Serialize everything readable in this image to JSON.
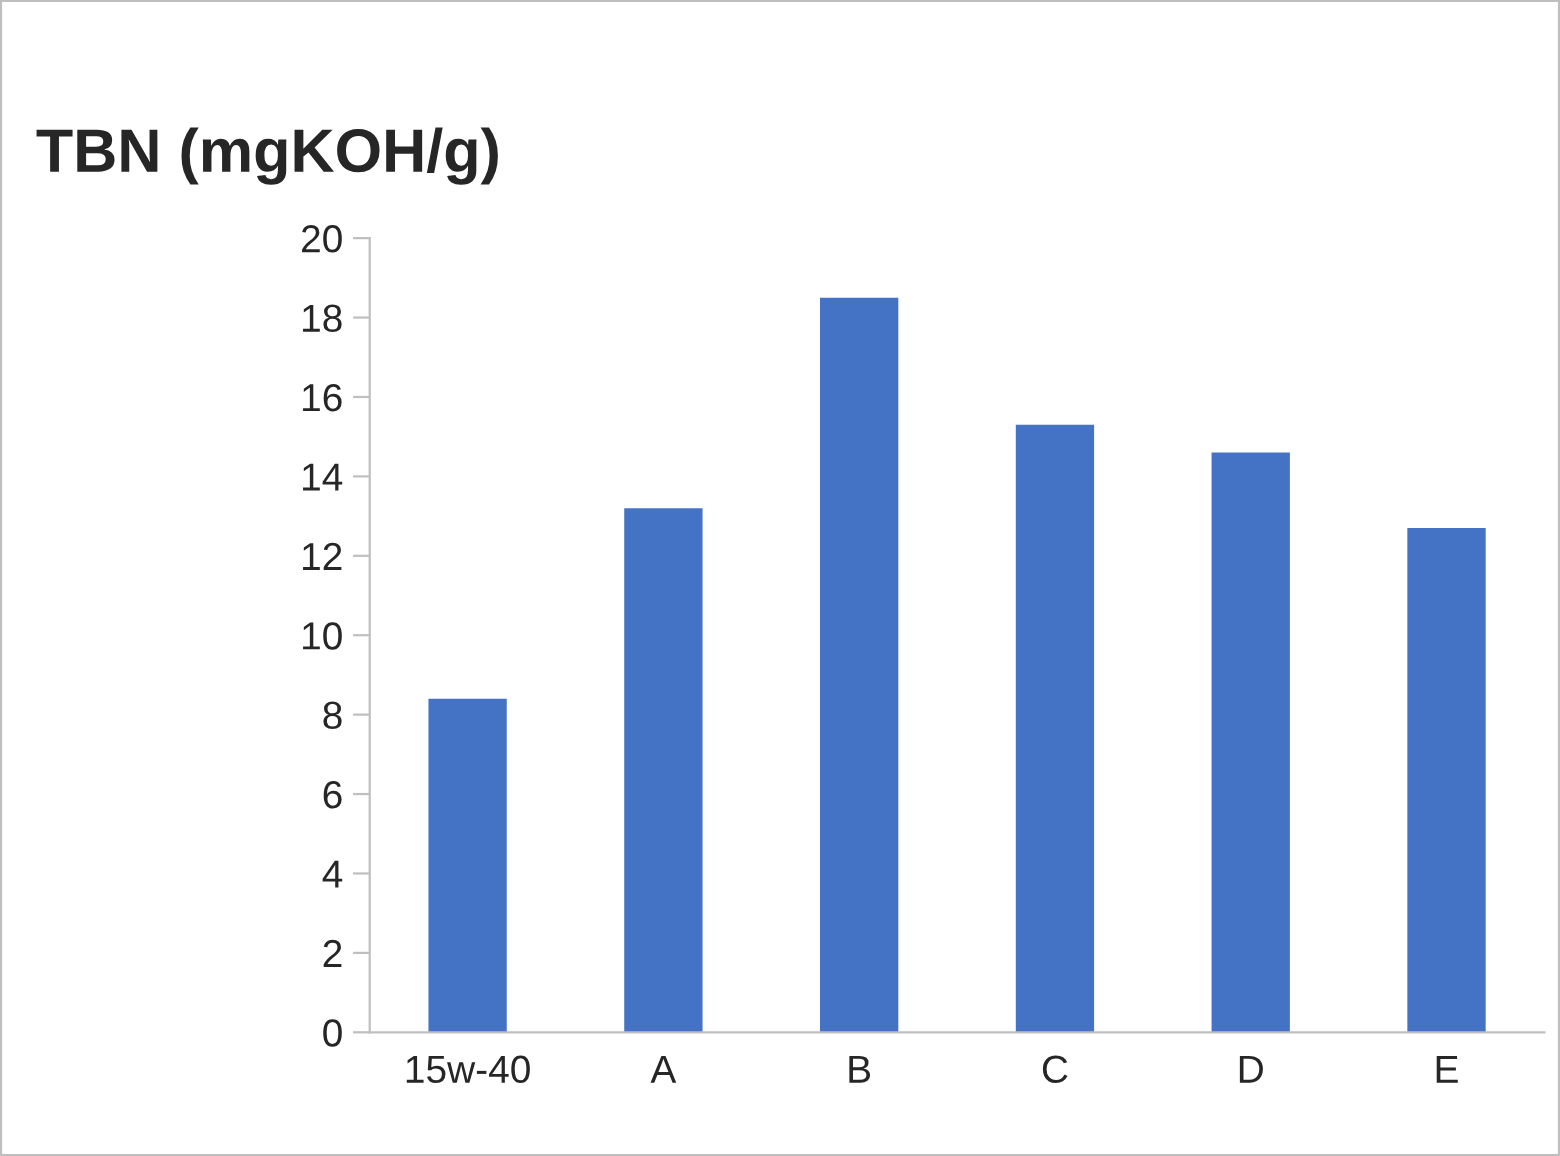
{
  "chart_data": {
    "type": "bar",
    "title": "TBN (mgKOH/g)",
    "categories": [
      "15w-40",
      "A",
      "B",
      "C",
      "D",
      "E"
    ],
    "values": [
      8.4,
      13.2,
      18.5,
      15.3,
      14.6,
      12.7
    ],
    "color": "#4472c4",
    "ylim": [
      0,
      20
    ],
    "yticks": [
      0,
      2,
      4,
      6,
      8,
      10,
      12,
      14,
      16,
      18,
      20
    ],
    "grid": false
  }
}
